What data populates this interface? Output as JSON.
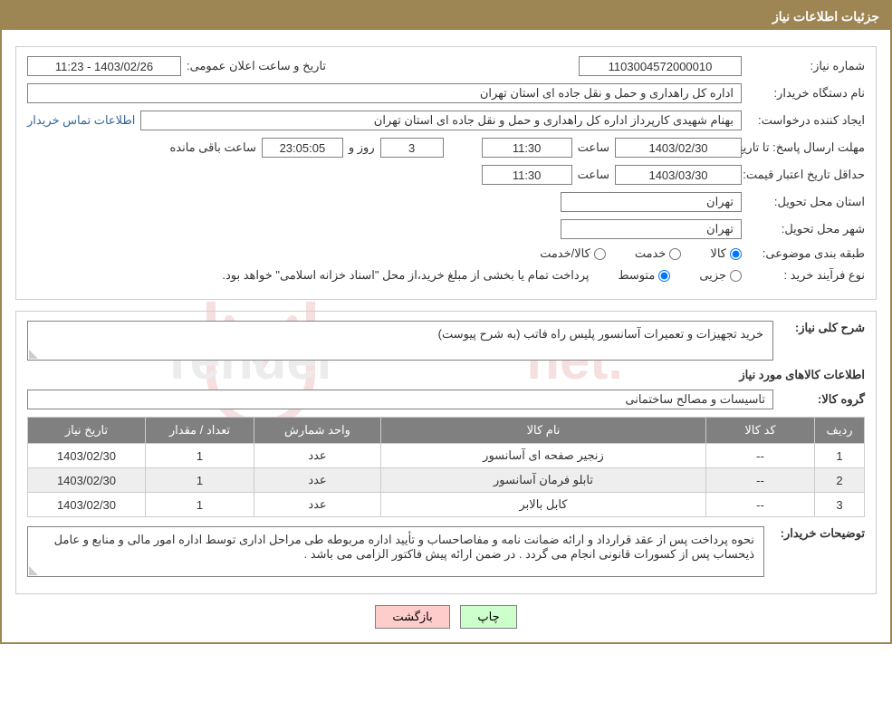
{
  "colors": {
    "header_bg": "#9e8554",
    "header_text": "#ffffff",
    "border": "#cccccc",
    "input_border": "#808080",
    "text": "#333333",
    "link": "#336699",
    "table_header_bg": "#808080",
    "table_row_alt": "#eeeeee",
    "btn_print_bg": "#ccffcc",
    "btn_back_bg": "#ffcccc",
    "watermark_red": "#c93030",
    "watermark_gray": "#888888"
  },
  "header": {
    "title": "جزئیات اطلاعات نیاز"
  },
  "form": {
    "need_number_label": "شماره نیاز:",
    "need_number_value": "1103004572000010",
    "announce_label": "تاریخ و ساعت اعلان عمومی:",
    "announce_value": "1403/02/26 - 11:23",
    "buyer_label": "نام دستگاه خریدار:",
    "buyer_value": "اداره کل راهداری و حمل و نقل جاده ای استان تهران",
    "creator_label": "ایجاد کننده درخواست:",
    "creator_value": "بهنام شهیدی کارپرداز اداره کل راهداری و حمل و نقل جاده ای استان تهران",
    "contact_link": "اطلاعات تماس خریدار",
    "deadline_label": "مهلت ارسال پاسخ: تا تاریخ:",
    "deadline_date": "1403/02/30",
    "time_label": "ساعت",
    "deadline_time": "11:30",
    "days_value": "3",
    "days_label": "روز و",
    "remain_time": "23:05:05",
    "remain_label": "ساعت باقی مانده",
    "min_validity_label": "حداقل تاریخ اعتبار قیمت: تا تاریخ:",
    "min_validity_date": "1403/03/30",
    "min_validity_time": "11:30",
    "province_label": "استان محل تحویل:",
    "province_value": "تهران",
    "city_label": "شهر محل تحویل:",
    "city_value": "تهران",
    "classify_label": "طبقه بندی موضوعی:",
    "radio_kala": "کالا",
    "radio_khadamat": "خدمت",
    "radio_kala_khadamat": "کالا/خدمت",
    "purchase_type_label": "نوع فرآیند خرید :",
    "radio_partial": "جزیی",
    "radio_medium": "متوسط",
    "payment_note": "پرداخت تمام یا بخشی از مبلغ خرید،از محل \"اسناد خزانه اسلامی\" خواهد بود."
  },
  "need_desc": {
    "label": "شرح کلی نیاز:",
    "value": "خرید تجهیزات و تعمیرات آسانسور پلیس راه فاتب (به شرح پیوست)"
  },
  "items_section": {
    "title": "اطلاعات کالاهای مورد نیاز",
    "group_label": "گروه کالا:",
    "group_value": "تاسیسات و مصالح ساختمانی",
    "columns": {
      "row": "ردیف",
      "code": "کد کالا",
      "name": "نام کالا",
      "unit": "واحد شمارش",
      "qty": "تعداد / مقدار",
      "date": "تاریخ نیاز"
    },
    "rows": [
      {
        "row": "1",
        "code": "--",
        "name": "زنجیر صفحه ای آسانسور",
        "unit": "عدد",
        "qty": "1",
        "date": "1403/02/30"
      },
      {
        "row": "2",
        "code": "--",
        "name": "تابلو فرمان آسانسور",
        "unit": "عدد",
        "qty": "1",
        "date": "1403/02/30"
      },
      {
        "row": "3",
        "code": "--",
        "name": "کابل بالابر",
        "unit": "عدد",
        "qty": "1",
        "date": "1403/02/30"
      }
    ]
  },
  "buyer_notes": {
    "label": "توضیحات خریدار:",
    "value": "نحوه پرداخت پس از عقد قرارداد و ارائه ضمانت نامه و مفاصاحساب و تأیید اداره مربوطه طی مراحل اداری توسط اداره امور مالی و منابع و عامل ذیحساب پس از کسورات قانونی انجام می گردد . در ضمن ارائه پیش فاکتور الزامی می باشد ."
  },
  "buttons": {
    "print": "چاپ",
    "back": "بازگشت"
  },
  "table_col_widths": {
    "row": "55px",
    "code": "120px",
    "name": "auto",
    "unit": "140px",
    "qty": "120px",
    "date": "130px"
  }
}
